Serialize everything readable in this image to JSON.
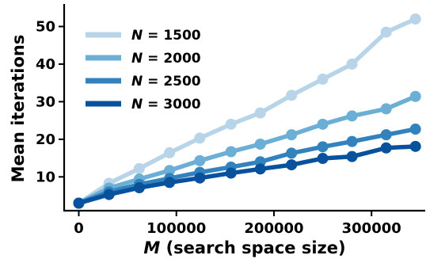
{
  "chart_data": {
    "type": "line",
    "xlabel_var": "M",
    "xlabel_rest": " (search space size)",
    "ylabel": "Mean iterations",
    "xlim": [
      -15000,
      355000
    ],
    "ylim": [
      1,
      56
    ],
    "xticks": [
      0,
      100000,
      200000,
      300000
    ],
    "xtick_labels": [
      "0",
      "100000",
      "200000",
      "300000"
    ],
    "yticks": [
      10,
      20,
      30,
      40,
      50
    ],
    "ytick_labels": [
      "10",
      "20",
      "30",
      "40",
      "50"
    ],
    "legend_position": "top-left",
    "x": [
      0,
      31000,
      62000,
      93000,
      124000,
      156000,
      186000,
      218000,
      250000,
      280000,
      315000,
      345000
    ],
    "series": [
      {
        "label_var": "N",
        "label_rest": " = 1500",
        "color": "#b8d4e8",
        "values": [
          3.0,
          8.3,
          12.2,
          16.4,
          20.3,
          24.0,
          27.0,
          31.7,
          36.0,
          40.0,
          48.5,
          52.0
        ]
      },
      {
        "label_var": "N",
        "label_rest": " = 2000",
        "color": "#6baed6",
        "values": [
          3.0,
          7.0,
          9.4,
          11.7,
          14.3,
          16.7,
          18.7,
          21.2,
          24.0,
          26.2,
          28.1,
          31.4
        ]
      },
      {
        "label_var": "N",
        "label_rest": " = 2500",
        "color": "#3182bd",
        "values": [
          3.0,
          6.0,
          8.0,
          9.6,
          11.2,
          12.6,
          14.0,
          16.3,
          18.0,
          19.4,
          21.2,
          22.7
        ]
      },
      {
        "label_var": "N",
        "label_rest": " = 3000",
        "color": "#08519c",
        "values": [
          3.0,
          5.3,
          7.1,
          8.5,
          9.7,
          11.0,
          12.1,
          13.2,
          14.9,
          15.4,
          17.7,
          18.1
        ]
      }
    ]
  }
}
